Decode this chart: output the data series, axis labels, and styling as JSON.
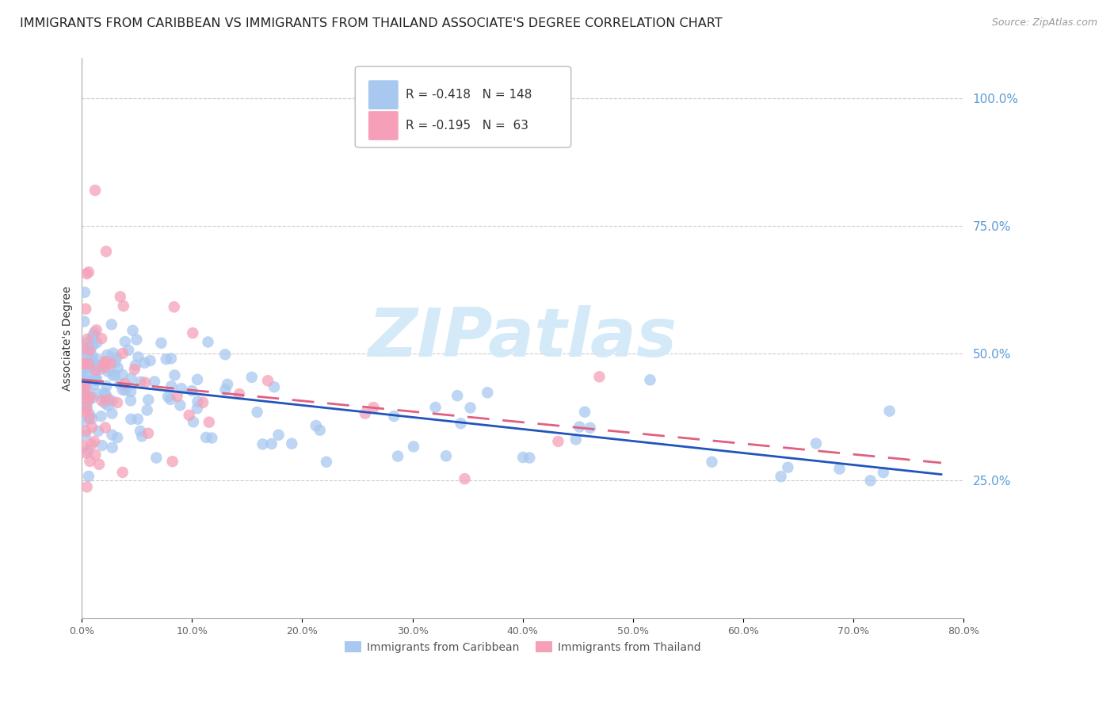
{
  "title": "IMMIGRANTS FROM CARIBBEAN VS IMMIGRANTS FROM THAILAND ASSOCIATE'S DEGREE CORRELATION CHART",
  "source": "Source: ZipAtlas.com",
  "ylabel": "Associate's Degree",
  "right_yticks": [
    "100.0%",
    "75.0%",
    "50.0%",
    "25.0%"
  ],
  "right_ytick_vals": [
    1.0,
    0.75,
    0.5,
    0.25
  ],
  "xmin": 0.0,
  "xmax": 0.8,
  "ymin": -0.02,
  "ymax": 1.08,
  "series1_name": "Immigrants from Caribbean",
  "series2_name": "Immigrants from Thailand",
  "series1_color": "#A8C8F0",
  "series2_color": "#F5A0B8",
  "series1_line_color": "#2255BB",
  "series2_line_color": "#E06080",
  "watermark_text": "ZIPatlas",
  "watermark_color": "#D0E8F8",
  "background_color": "#ffffff",
  "grid_color": "#cccccc",
  "title_fontsize": 11.5,
  "legend_r1": "R = -0.418",
  "legend_n1": "N = 148",
  "legend_r2": "R = -0.195",
  "legend_n2": "N =  63"
}
